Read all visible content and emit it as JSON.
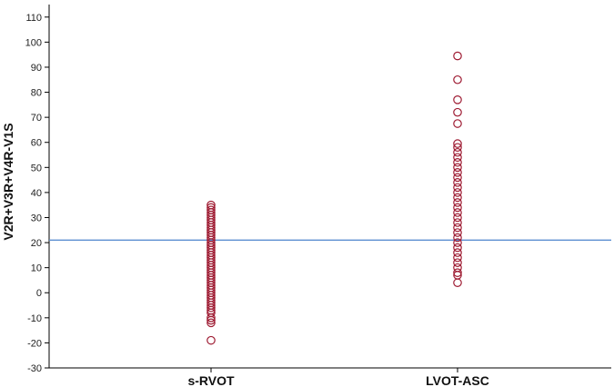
{
  "chart_data": {
    "type": "scatter",
    "title": "",
    "xlabel": "",
    "ylabel": "V2R+V3R+V4R-V1S",
    "categories": [
      "s-RVOT",
      "LVOT-ASC"
    ],
    "ylim": [
      -30,
      115
    ],
    "yticks": [
      -30,
      -20,
      -10,
      0,
      10,
      20,
      30,
      40,
      50,
      60,
      70,
      80,
      90,
      100,
      110
    ],
    "grid": false,
    "legend": "none",
    "reference_line": {
      "y": 21,
      "color": "#5b8fd1"
    },
    "colors": {
      "marker": "#9e1b32",
      "axis": "#000000"
    },
    "series": [
      {
        "category": "s-RVOT",
        "values": [
          35,
          34,
          33,
          32,
          31,
          30,
          29,
          28,
          27,
          26,
          25,
          24,
          23,
          22,
          21,
          20,
          19,
          18,
          17,
          16,
          15,
          14,
          13,
          12,
          11,
          10,
          9,
          8,
          7,
          6,
          5,
          4,
          3,
          2,
          1,
          0,
          -1,
          -2,
          -3,
          -4,
          -5,
          -6,
          -7,
          -8,
          -10,
          -11,
          -12,
          -19
        ]
      },
      {
        "category": "LVOT-ASC",
        "values": [
          94.5,
          85,
          77,
          72,
          67.5,
          59.5,
          58,
          56,
          54,
          52,
          50,
          48,
          46,
          44,
          42,
          40,
          38,
          36,
          34,
          32,
          30,
          28,
          26,
          24,
          22,
          20,
          18,
          16,
          14,
          12,
          10,
          8,
          7,
          4
        ]
      }
    ]
  }
}
